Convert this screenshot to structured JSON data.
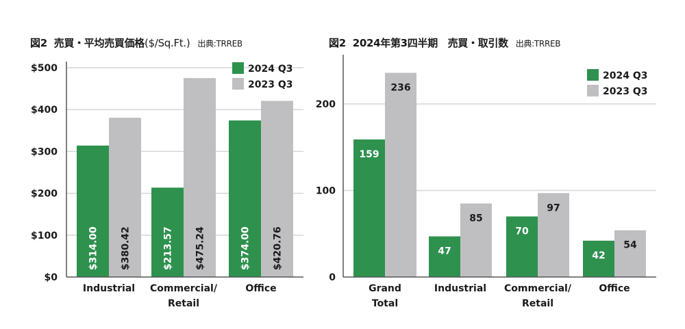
{
  "colors": {
    "series_2024": "#2e914e",
    "series_2023": "#bfbfc1",
    "grid": "#d6d6d6",
    "axis": "#555555"
  },
  "chart_data": [
    {
      "type": "bar",
      "title_prefix": "図2",
      "title": "売買・平均売買価格",
      "title_unit": "($/Sq.Ft.)",
      "source": "出典:TRREB",
      "categories": [
        "Industrial",
        "Commercial/\nRetail",
        "Office"
      ],
      "series": [
        {
          "name": "2024 Q3",
          "values": [
            314.0,
            213.57,
            374.0
          ],
          "labels": [
            "$314.00",
            "$213.57",
            "$374.00"
          ]
        },
        {
          "name": "2023 Q3",
          "values": [
            380.42,
            475.24,
            420.76
          ],
          "labels": [
            "$380.42",
            "$475.24",
            "$420.76"
          ]
        }
      ],
      "yticks": [
        0,
        100,
        200,
        300,
        400,
        500
      ],
      "ytick_labels": [
        "$0",
        "$100",
        "$200",
        "$300",
        "$400",
        "$500"
      ],
      "ylim": [
        0,
        500
      ],
      "xlabel": "",
      "ylabel": "",
      "grid": true,
      "legend": "top-right",
      "label_orientation": "vertical-inside"
    },
    {
      "type": "bar",
      "title_prefix": "図2",
      "title": "2024年第3四半期　売買・取引数",
      "source": "出典:TRREB",
      "categories": [
        "Grand\nTotal",
        "Industrial",
        "Commercial/\nRetail",
        "Office"
      ],
      "series": [
        {
          "name": "2024 Q3",
          "values": [
            159,
            47,
            70,
            42
          ],
          "labels": [
            "159",
            "47",
            "70",
            "42"
          ]
        },
        {
          "name": "2023 Q3",
          "values": [
            236,
            85,
            97,
            54
          ],
          "labels": [
            "236",
            "85",
            "97",
            "54"
          ]
        }
      ],
      "yticks": [
        0,
        100,
        200
      ],
      "ytick_labels": [
        "0",
        "100",
        "200"
      ],
      "ylim": [
        0,
        250
      ],
      "xlabel": "",
      "ylabel": "",
      "grid": true,
      "legend": "top-right",
      "label_orientation": "horizontal-inside-top"
    }
  ]
}
